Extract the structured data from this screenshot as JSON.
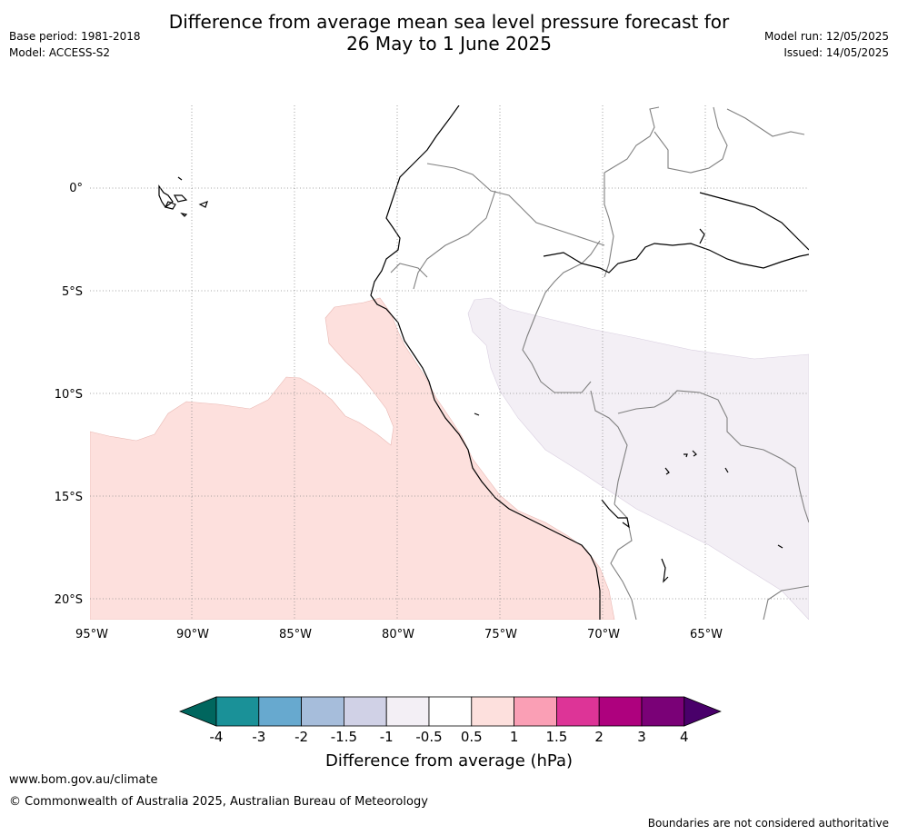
{
  "title_line1": "Difference from average mean sea level pressure forecast for",
  "title_line2": "26 May to 1 June 2025",
  "base_period": "Base period: 1981-2018",
  "model": "Model: ACCESS-S2",
  "model_run": "Model run: 12/05/2025",
  "issued": "Issued: 14/05/2025",
  "map": {
    "lon_labels": [
      "95°W",
      "90°W",
      "85°W",
      "80°W",
      "75°W",
      "70°W",
      "65°W"
    ],
    "lat_labels": [
      "0°",
      "5°S",
      "10°S",
      "15°S",
      "20°S"
    ],
    "colors": {
      "land_border": "#808080",
      "coastline": "#000000",
      "positive_anomaly_fill": "#fde0dd",
      "negative_anomaly_fill": "#f3eff5",
      "grid": "#888888"
    }
  },
  "colorbar": {
    "title": "Difference from average (hPa)",
    "tick_labels": [
      "-4",
      "-3",
      "-2",
      "-1.5",
      "-1",
      "-0.5",
      "0.5",
      "1",
      "1.5",
      "2",
      "3",
      "4"
    ],
    "colors": [
      "#00665e",
      "#1a9198",
      "#67a9cf",
      "#a6bddb",
      "#d0d1e6",
      "#f3eff5",
      "#ffffff",
      "#fde0dd",
      "#fa9fb5",
      "#dd3497",
      "#ae017e",
      "#7a0177",
      "#49006a"
    ]
  },
  "footer": {
    "url": "www.bom.gov.au/climate",
    "copyright": "© Commonwealth of Australia 2025, Australian Bureau of Meteorology",
    "disclaimer": "Boundaries are not considered authoritative"
  }
}
